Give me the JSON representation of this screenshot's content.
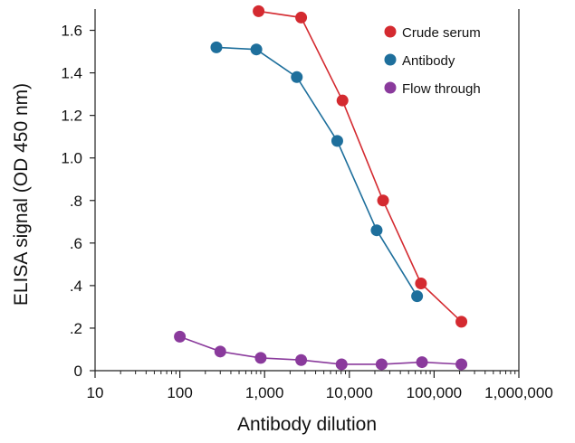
{
  "chart_data": {
    "type": "line",
    "title": "",
    "xlabel": "Antibody dilution",
    "ylabel": "ELISA signal (OD 450 nm)",
    "x_scale": "log",
    "xlim": [
      10,
      1000000
    ],
    "ylim": [
      0,
      1.7
    ],
    "x_ticks": [
      {
        "value": 10,
        "label": "10"
      },
      {
        "value": 100,
        "label": "100"
      },
      {
        "value": 1000,
        "label": "1,000"
      },
      {
        "value": 10000,
        "label": "10,000"
      },
      {
        "value": 100000,
        "label": "100,000"
      },
      {
        "value": 1000000,
        "label": "1,000,000"
      }
    ],
    "y_ticks": [
      {
        "value": 0,
        "label": "0"
      },
      {
        "value": 0.2,
        "label": ".2"
      },
      {
        "value": 0.4,
        "label": ".4"
      },
      {
        "value": 0.6,
        "label": ".6"
      },
      {
        "value": 0.8,
        "label": ".8"
      },
      {
        "value": 1.0,
        "label": "1.0"
      },
      {
        "value": 1.2,
        "label": "1.2"
      },
      {
        "value": 1.4,
        "label": "1.4"
      },
      {
        "value": 1.6,
        "label": "1.6"
      }
    ],
    "grid": false,
    "legend_position": "top-right",
    "series": [
      {
        "name": "Crude serum",
        "color": "#d42a30",
        "x": [
          850,
          2700,
          8300,
          25000,
          70000,
          210000
        ],
        "y": [
          1.69,
          1.66,
          1.27,
          0.8,
          0.41,
          0.23
        ]
      },
      {
        "name": "Antibody",
        "color": "#1e6f9c",
        "x": [
          270,
          800,
          2400,
          7200,
          21000,
          63000
        ],
        "y": [
          1.52,
          1.51,
          1.38,
          1.08,
          0.66,
          0.35
        ]
      },
      {
        "name": "Flow through",
        "color": "#8a3a9c",
        "x": [
          100,
          300,
          900,
          2700,
          8100,
          24000,
          72000,
          210000
        ],
        "y": [
          0.16,
          0.09,
          0.06,
          0.05,
          0.03,
          0.03,
          0.04,
          0.03
        ]
      }
    ]
  }
}
